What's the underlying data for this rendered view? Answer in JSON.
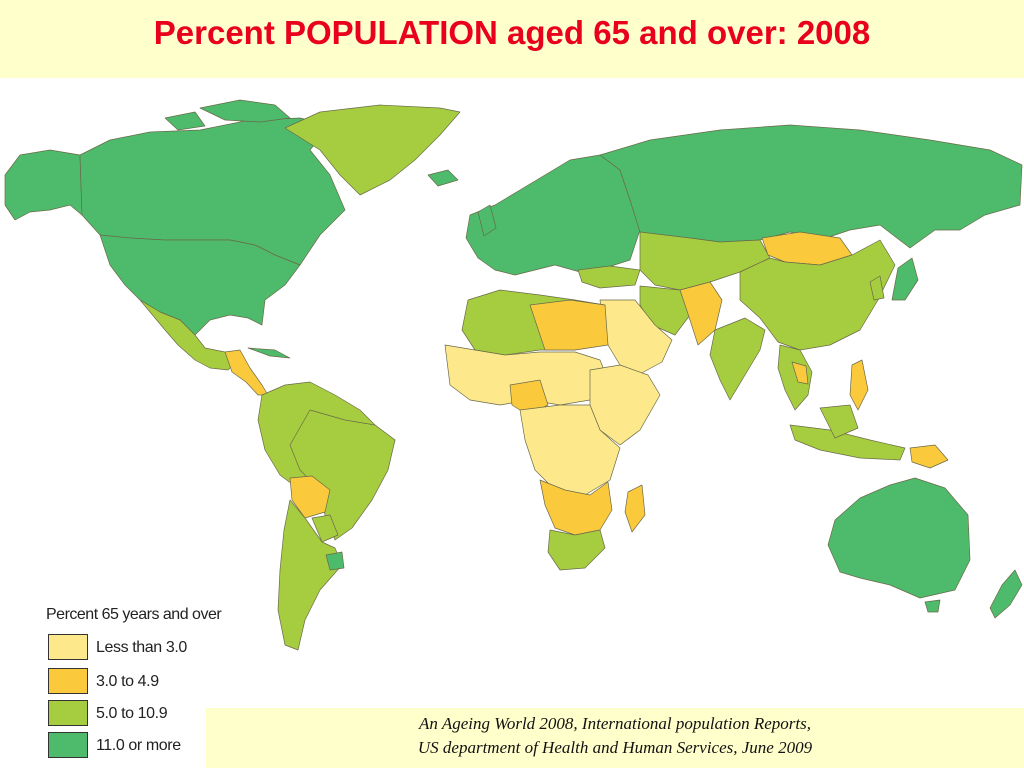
{
  "header": {
    "title": "Percent POPULATION aged 65 and over: 2008"
  },
  "colors": {
    "header_bg": "#ffffcc",
    "title": "#e8001c",
    "ocean": "#ffffff",
    "border": "#6a6a4a"
  },
  "legend": {
    "title": "Percent 65 years and over",
    "items": [
      {
        "label": "Less than 3.0",
        "color": "#fde98c"
      },
      {
        "label": "3.0 to 4.9",
        "color": "#fbc93c"
      },
      {
        "label": "5.0 to 10.9",
        "color": "#a6cd3f"
      },
      {
        "label": "11.0 or more",
        "color": "#4dbb6b"
      }
    ]
  },
  "source": {
    "line1": "An Ageing World 2008, International population Reports,",
    "line2": "US department of Health and Human Services, June  2009"
  }
}
